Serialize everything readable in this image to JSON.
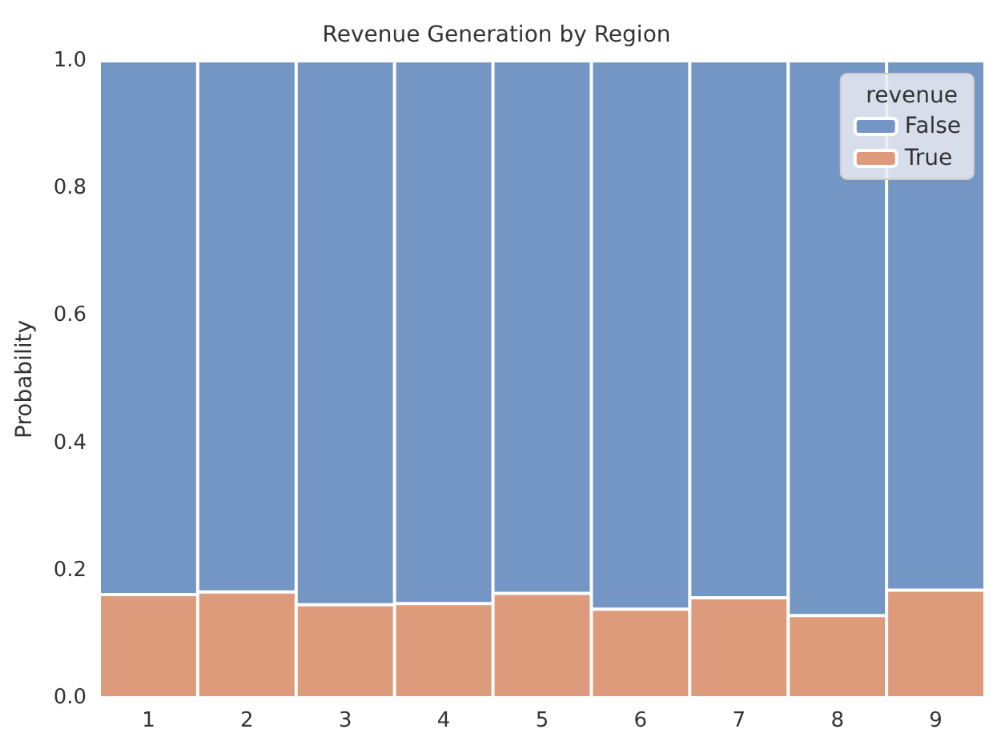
{
  "chart_data": {
    "type": "bar",
    "title": "Revenue Generation by Region",
    "ylabel": "Probability",
    "legend_title": "revenue",
    "categories": [
      "1",
      "2",
      "3",
      "4",
      "5",
      "6",
      "7",
      "8",
      "9"
    ],
    "stacked": true,
    "series": [
      {
        "name": "True",
        "color": "#de9b7b",
        "values": [
          0.162,
          0.166,
          0.146,
          0.148,
          0.164,
          0.139,
          0.157,
          0.129,
          0.169
        ]
      },
      {
        "name": "False",
        "color": "#7396c4",
        "values": [
          0.838,
          0.834,
          0.854,
          0.852,
          0.836,
          0.861,
          0.843,
          0.871,
          0.831
        ]
      }
    ],
    "ylim": [
      0,
      1
    ],
    "yticks": [
      {
        "value": 0,
        "label": "0.0"
      },
      0.2,
      0.4,
      0.6,
      0.8,
      {
        "value": 1,
        "label": "1.0"
      }
    ],
    "legend": "top right"
  }
}
